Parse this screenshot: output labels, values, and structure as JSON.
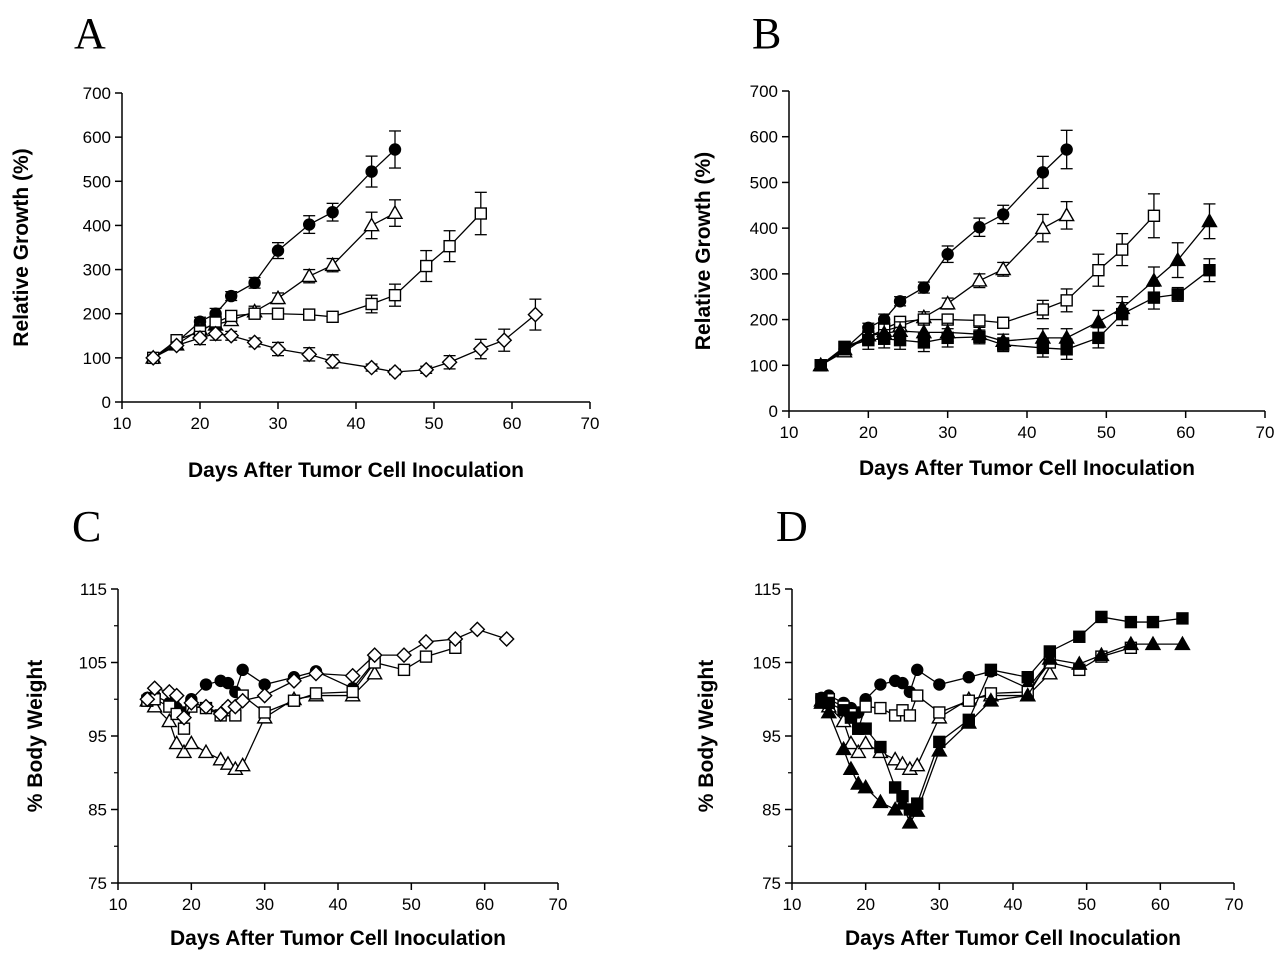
{
  "figure": {
    "background": "#ffffff",
    "ink_color": "#000000"
  },
  "chart_data": [
    {
      "panel": "A",
      "type": "line",
      "xlabel": "Days After Tumor Cell Inoculation",
      "ylabel": "Relative Growth (%)",
      "xlim": [
        10,
        70
      ],
      "ylim": [
        0,
        700
      ],
      "xticks": [
        10,
        20,
        30,
        40,
        50,
        60,
        70
      ],
      "yticks": [
        0,
        100,
        200,
        300,
        400,
        500,
        600,
        700
      ],
      "grid": false,
      "series": [
        {
          "marker": "circle",
          "filled": true,
          "x": [
            14,
            17,
            20,
            22,
            24,
            27,
            30,
            34,
            37,
            42,
            45
          ],
          "y": [
            100,
            135,
            182,
            200,
            240,
            270,
            343,
            402,
            430,
            522,
            572
          ],
          "err": [
            0,
            10,
            10,
            12,
            10,
            12,
            18,
            20,
            20,
            35,
            42
          ]
        },
        {
          "marker": "triangle",
          "filled": false,
          "x": [
            14,
            17,
            20,
            22,
            24,
            27,
            30,
            34,
            37,
            42,
            45
          ],
          "y": [
            100,
            130,
            165,
            175,
            185,
            205,
            235,
            285,
            310,
            400,
            428
          ],
          "err": [
            0,
            10,
            10,
            10,
            10,
            12,
            12,
            15,
            15,
            30,
            30
          ]
        },
        {
          "marker": "square",
          "filled": false,
          "x": [
            14,
            17,
            20,
            22,
            24,
            27,
            30,
            34,
            37,
            42,
            45,
            49,
            52,
            56
          ],
          "y": [
            100,
            140,
            160,
            180,
            195,
            200,
            200,
            198,
            193,
            222,
            242,
            308,
            353,
            427
          ],
          "err": [
            0,
            10,
            15,
            15,
            10,
            10,
            10,
            10,
            10,
            20,
            25,
            35,
            35,
            48
          ]
        },
        {
          "marker": "diamond",
          "filled": false,
          "x": [
            14,
            17,
            20,
            22,
            24,
            27,
            30,
            34,
            37,
            42,
            45,
            49,
            52,
            56,
            59,
            63
          ],
          "y": [
            100,
            128,
            145,
            155,
            150,
            135,
            120,
            108,
            92,
            78,
            68,
            73,
            90,
            120,
            140,
            198
          ],
          "err": [
            0,
            8,
            15,
            15,
            10,
            10,
            15,
            15,
            15,
            8,
            6,
            8,
            15,
            22,
            25,
            35
          ]
        }
      ]
    },
    {
      "panel": "B",
      "type": "line",
      "xlabel": "Days After Tumor Cell Inoculation",
      "ylabel": "Relative Growth (%)",
      "xlim": [
        10,
        70
      ],
      "ylim": [
        0,
        700
      ],
      "xticks": [
        10,
        20,
        30,
        40,
        50,
        60,
        70
      ],
      "yticks": [
        0,
        100,
        200,
        300,
        400,
        500,
        600,
        700
      ],
      "grid": false,
      "series": [
        {
          "marker": "circle",
          "filled": true,
          "x": [
            14,
            17,
            20,
            22,
            24,
            27,
            30,
            34,
            37,
            42,
            45
          ],
          "y": [
            100,
            135,
            182,
            200,
            240,
            270,
            343,
            402,
            430,
            522,
            572
          ],
          "err": [
            0,
            10,
            10,
            12,
            10,
            12,
            18,
            20,
            20,
            35,
            42
          ]
        },
        {
          "marker": "triangle",
          "filled": false,
          "x": [
            14,
            17,
            20,
            22,
            24,
            27,
            30,
            34,
            37,
            42,
            45
          ],
          "y": [
            100,
            130,
            165,
            175,
            185,
            205,
            235,
            285,
            310,
            400,
            428
          ],
          "err": [
            0,
            10,
            10,
            10,
            10,
            12,
            12,
            15,
            15,
            30,
            30
          ]
        },
        {
          "marker": "square",
          "filled": false,
          "x": [
            14,
            17,
            20,
            22,
            24,
            27,
            30,
            34,
            37,
            42,
            45,
            49,
            52,
            56
          ],
          "y": [
            100,
            140,
            160,
            180,
            195,
            200,
            200,
            198,
            193,
            222,
            242,
            308,
            353,
            427
          ],
          "err": [
            0,
            10,
            15,
            15,
            10,
            10,
            10,
            10,
            10,
            20,
            25,
            35,
            35,
            48
          ]
        },
        {
          "marker": "triangle",
          "filled": true,
          "x": [
            14,
            17,
            20,
            22,
            24,
            27,
            30,
            34,
            37,
            42,
            45,
            49,
            52,
            56,
            59,
            63
          ],
          "y": [
            100,
            135,
            165,
            170,
            175,
            172,
            172,
            168,
            153,
            160,
            160,
            195,
            225,
            285,
            330,
            415
          ],
          "err": [
            0,
            12,
            20,
            20,
            20,
            20,
            20,
            15,
            15,
            20,
            20,
            25,
            25,
            30,
            38,
            38
          ]
        },
        {
          "marker": "square",
          "filled": true,
          "x": [
            14,
            17,
            20,
            22,
            24,
            27,
            30,
            34,
            37,
            42,
            45,
            49,
            52,
            56,
            59,
            63
          ],
          "y": [
            100,
            140,
            155,
            158,
            155,
            150,
            160,
            162,
            145,
            138,
            135,
            160,
            212,
            248,
            255,
            308
          ],
          "err": [
            0,
            12,
            20,
            20,
            20,
            20,
            20,
            15,
            15,
            20,
            22,
            22,
            25,
            25,
            15,
            25
          ]
        }
      ]
    },
    {
      "panel": "C",
      "type": "line",
      "xlabel": "Days After Tumor Cell Inoculation",
      "ylabel": "% Body Weight",
      "xlim": [
        10,
        70
      ],
      "ylim": [
        75,
        115
      ],
      "xticks": [
        10,
        20,
        30,
        40,
        50,
        60,
        70
      ],
      "yticks": [
        75,
        85,
        95,
        105,
        115
      ],
      "grid": false,
      "series": [
        {
          "marker": "circle",
          "filled": true,
          "x": [
            14,
            15,
            17,
            18,
            19,
            20,
            22,
            24,
            25,
            26,
            27,
            30,
            34,
            37,
            42,
            45
          ],
          "y": [
            100.2,
            100.5,
            99.5,
            98.8,
            98.2,
            100,
            102,
            102.5,
            102.2,
            101,
            104,
            102,
            103,
            103.8,
            101.5,
            105.2
          ]
        },
        {
          "marker": "triangle",
          "filled": false,
          "x": [
            14,
            15,
            17,
            18,
            19,
            20,
            22,
            24,
            25,
            26,
            27,
            30,
            34,
            37,
            42,
            45
          ],
          "y": [
            99.8,
            99,
            97,
            94,
            92.8,
            94,
            92.8,
            91.8,
            91.2,
            90.5,
            91,
            97.5,
            100,
            100.5,
            100.5,
            103.5
          ]
        },
        {
          "marker": "square",
          "filled": false,
          "x": [
            14,
            15,
            17,
            18,
            19,
            20,
            22,
            24,
            25,
            26,
            27,
            30,
            34,
            37,
            42,
            45,
            49,
            52,
            56
          ],
          "y": [
            99.8,
            100,
            99,
            98,
            96,
            99,
            98.8,
            97.8,
            98.5,
            97.8,
            100.5,
            98.2,
            99.8,
            100.8,
            101,
            105,
            104,
            105.8,
            107
          ]
        },
        {
          "marker": "diamond",
          "filled": false,
          "x": [
            14,
            15,
            17,
            18,
            19,
            20,
            22,
            24,
            25,
            26,
            27,
            30,
            34,
            37,
            42,
            45,
            49,
            52,
            56,
            59,
            63
          ],
          "y": [
            100,
            101.5,
            101,
            100.5,
            97.5,
            99.5,
            99,
            98,
            99,
            99,
            99.8,
            100.5,
            102.5,
            103.5,
            103.2,
            106,
            106,
            107.8,
            108.2,
            109.5,
            108.2
          ]
        }
      ]
    },
    {
      "panel": "D",
      "type": "line",
      "xlabel": "Days After Tumor Cell Inoculation",
      "ylabel": "% Body Weight",
      "xlim": [
        10,
        70
      ],
      "ylim": [
        75,
        115
      ],
      "xticks": [
        10,
        20,
        30,
        40,
        50,
        60,
        70
      ],
      "yticks": [
        75,
        85,
        95,
        105,
        115
      ],
      "grid": false,
      "series": [
        {
          "marker": "circle",
          "filled": true,
          "x": [
            14,
            15,
            17,
            18,
            19,
            20,
            22,
            24,
            25,
            26,
            27,
            30,
            34,
            37,
            42,
            45
          ],
          "y": [
            100.2,
            100.5,
            99.5,
            98.8,
            98.2,
            100,
            102,
            102.5,
            102.2,
            101,
            104,
            102,
            103,
            103.8,
            101.5,
            105.2
          ]
        },
        {
          "marker": "triangle",
          "filled": false,
          "x": [
            14,
            15,
            17,
            18,
            19,
            20,
            22,
            24,
            25,
            26,
            27,
            30,
            34,
            37,
            42,
            45
          ],
          "y": [
            99.8,
            99,
            97,
            94,
            92.8,
            94,
            92.8,
            91.8,
            91.2,
            90.5,
            91,
            97.5,
            100,
            100.5,
            100.5,
            103.5
          ]
        },
        {
          "marker": "square",
          "filled": false,
          "x": [
            14,
            15,
            17,
            18,
            19,
            20,
            22,
            24,
            25,
            26,
            27,
            30,
            34,
            37,
            42,
            45,
            49,
            52,
            56
          ],
          "y": [
            99.8,
            100,
            99,
            98,
            96,
            99,
            98.8,
            97.8,
            98.5,
            97.8,
            100.5,
            98.2,
            99.8,
            100.8,
            101,
            105,
            104,
            105.8,
            107
          ]
        },
        {
          "marker": "square",
          "filled": true,
          "x": [
            14,
            15,
            17,
            18,
            19,
            20,
            22,
            24,
            25,
            26,
            27,
            30,
            34,
            37,
            42,
            45,
            49,
            52,
            56,
            59,
            63
          ],
          "y": [
            100,
            99.5,
            98.5,
            97.5,
            96,
            96,
            93.5,
            88,
            86.8,
            85,
            85.8,
            94.2,
            97.2,
            104,
            103,
            106.5,
            108.5,
            111.2,
            110.5,
            110.5,
            111
          ]
        },
        {
          "marker": "triangle",
          "filled": true,
          "x": [
            14,
            15,
            17,
            18,
            19,
            20,
            22,
            24,
            25,
            26,
            27,
            30,
            34,
            37,
            42,
            45,
            49,
            52,
            56,
            59,
            63
          ],
          "y": [
            99.5,
            98.2,
            93.2,
            90.5,
            88.5,
            88,
            86,
            85,
            85.8,
            83.2,
            84.8,
            93,
            96.8,
            99.8,
            100.5,
            105.5,
            104.8,
            106,
            107.5,
            107.5,
            107.5
          ]
        }
      ]
    }
  ]
}
